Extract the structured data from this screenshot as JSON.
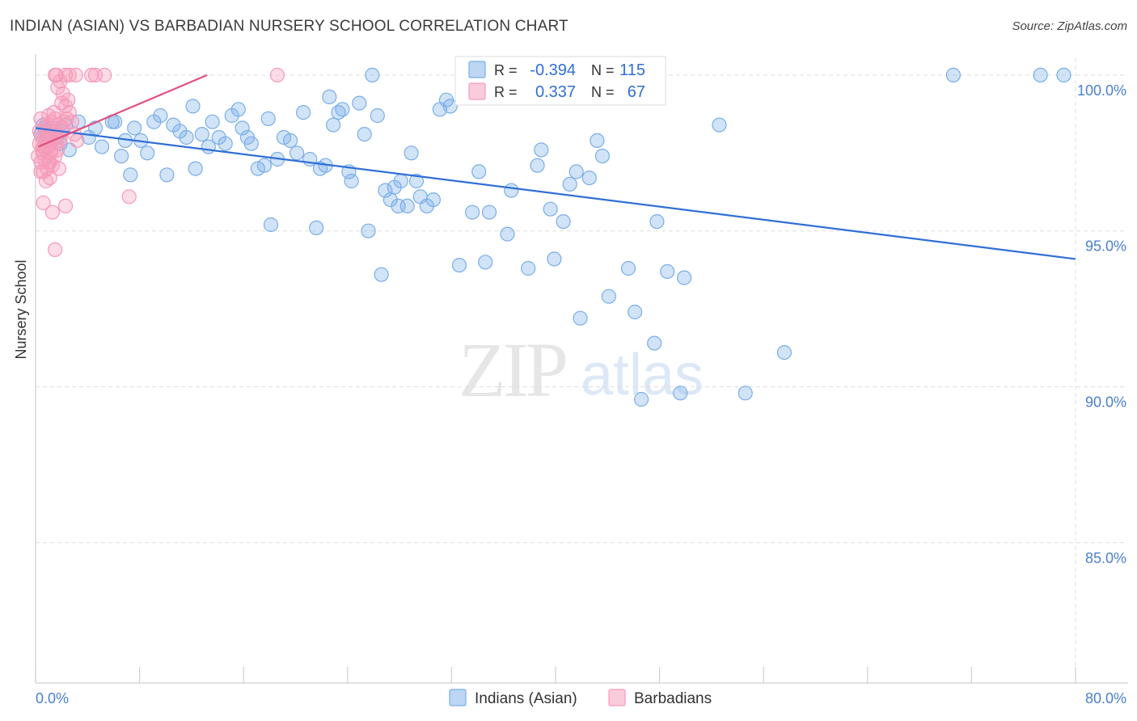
{
  "title": "INDIAN (ASIAN) VS BARBADIAN NURSERY SCHOOL CORRELATION CHART",
  "source": "Source: ZipAtlas.com",
  "watermark": {
    "zip": "ZIP",
    "atlas": "atlas"
  },
  "chart_data": {
    "type": "scatter",
    "title": "INDIAN (ASIAN) VS BARBADIAN NURSERY SCHOOL CORRELATION CHART",
    "xlabel": "",
    "ylabel": "Nursery School",
    "xlim": [
      0,
      80
    ],
    "ylim": [
      80.5,
      100.8
    ],
    "x_tick_labels": [
      {
        "value": 0,
        "label": "0.0%"
      },
      {
        "value": 80,
        "label": "80.0%"
      }
    ],
    "y_tick_labels": [
      {
        "value": 100,
        "label": "100.0%"
      },
      {
        "value": 95,
        "label": "95.0%"
      },
      {
        "value": 90,
        "label": "90.0%"
      },
      {
        "value": 85,
        "label": "85.0%"
      }
    ],
    "grid": true,
    "legend_position": "bottom-center",
    "stats_box": [
      {
        "r_label": "R =",
        "r_value": "-0.394",
        "n_label": "N =",
        "n_value": "115"
      },
      {
        "r_label": "R =",
        "r_value": "0.337",
        "n_label": "N =",
        "n_value": "67"
      }
    ],
    "series": [
      {
        "name": "Indians (Asian)",
        "color": "#7aaee8",
        "line_color": "#2f6fd6",
        "trend": {
          "x": [
            0,
            80
          ],
          "y": [
            98.3,
            94.1
          ]
        },
        "points": [
          [
            0.4,
            98.1
          ],
          [
            0.6,
            98.4
          ],
          [
            0.8,
            98.2
          ],
          [
            1.0,
            97.9
          ],
          [
            1.3,
            98.3
          ],
          [
            1.6,
            98.0
          ],
          [
            1.9,
            97.8
          ],
          [
            2.3,
            98.4
          ],
          [
            2.6,
            97.6
          ],
          [
            3.3,
            98.5
          ],
          [
            4.1,
            98.0
          ],
          [
            4.6,
            98.3
          ],
          [
            5.1,
            97.7
          ],
          [
            5.9,
            98.5
          ],
          [
            6.6,
            97.4
          ],
          [
            6.9,
            97.9
          ],
          [
            7.3,
            96.8
          ],
          [
            7.6,
            98.3
          ],
          [
            8.1,
            97.9
          ],
          [
            8.6,
            97.5
          ],
          [
            9.1,
            98.5
          ],
          [
            9.6,
            98.7
          ],
          [
            10.1,
            96.8
          ],
          [
            10.6,
            98.4
          ],
          [
            11.1,
            98.2
          ],
          [
            11.6,
            98.0
          ],
          [
            12.1,
            99.0
          ],
          [
            12.3,
            97.0
          ],
          [
            12.8,
            98.1
          ],
          [
            13.3,
            97.7
          ],
          [
            13.6,
            98.5
          ],
          [
            14.1,
            98.0
          ],
          [
            14.6,
            97.8
          ],
          [
            15.1,
            98.7
          ],
          [
            15.6,
            98.9
          ],
          [
            15.9,
            98.3
          ],
          [
            16.3,
            98.0
          ],
          [
            16.6,
            97.8
          ],
          [
            17.1,
            97.0
          ],
          [
            17.6,
            97.1
          ],
          [
            17.9,
            98.6
          ],
          [
            18.1,
            95.2
          ],
          [
            18.6,
            97.3
          ],
          [
            19.1,
            98.0
          ],
          [
            19.6,
            97.9
          ],
          [
            20.1,
            97.5
          ],
          [
            20.6,
            98.8
          ],
          [
            21.1,
            97.3
          ],
          [
            21.6,
            95.1
          ],
          [
            21.9,
            97.0
          ],
          [
            22.3,
            97.1
          ],
          [
            22.6,
            99.3
          ],
          [
            22.9,
            98.4
          ],
          [
            23.3,
            98.8
          ],
          [
            23.6,
            98.9
          ],
          [
            24.1,
            96.9
          ],
          [
            24.3,
            96.6
          ],
          [
            24.9,
            99.1
          ],
          [
            25.3,
            98.1
          ],
          [
            25.6,
            95.0
          ],
          [
            25.9,
            100.0
          ],
          [
            26.3,
            98.7
          ],
          [
            26.6,
            93.6
          ],
          [
            26.9,
            96.3
          ],
          [
            27.3,
            96.0
          ],
          [
            27.6,
            96.4
          ],
          [
            27.9,
            95.8
          ],
          [
            28.1,
            96.6
          ],
          [
            28.6,
            95.8
          ],
          [
            28.9,
            97.5
          ],
          [
            29.3,
            96.6
          ],
          [
            29.6,
            96.1
          ],
          [
            30.1,
            95.8
          ],
          [
            30.6,
            96.0
          ],
          [
            31.1,
            98.9
          ],
          [
            31.6,
            99.2
          ],
          [
            31.9,
            99.0
          ],
          [
            32.6,
            93.9
          ],
          [
            33.1,
            100.0
          ],
          [
            33.6,
            95.6
          ],
          [
            34.1,
            96.9
          ],
          [
            34.6,
            94.0
          ],
          [
            34.9,
            95.6
          ],
          [
            36.3,
            94.9
          ],
          [
            36.6,
            96.3
          ],
          [
            37.9,
            93.8
          ],
          [
            38.6,
            97.1
          ],
          [
            38.9,
            97.6
          ],
          [
            39.6,
            95.7
          ],
          [
            39.9,
            94.1
          ],
          [
            40.6,
            95.3
          ],
          [
            41.1,
            96.5
          ],
          [
            41.6,
            96.9
          ],
          [
            41.9,
            92.2
          ],
          [
            42.6,
            96.7
          ],
          [
            43.2,
            97.9
          ],
          [
            43.6,
            97.4
          ],
          [
            44.1,
            92.9
          ],
          [
            45.6,
            93.8
          ],
          [
            46.1,
            92.4
          ],
          [
            46.6,
            89.6
          ],
          [
            47.6,
            91.4
          ],
          [
            47.8,
            95.3
          ],
          [
            48.6,
            93.7
          ],
          [
            49.6,
            89.8
          ],
          [
            49.9,
            93.5
          ],
          [
            52.6,
            98.4
          ],
          [
            54.6,
            89.8
          ],
          [
            57.6,
            91.1
          ],
          [
            70.6,
            100.0
          ],
          [
            77.3,
            100.0
          ],
          [
            79.1,
            100.0
          ],
          [
            0.7,
            98.3
          ],
          [
            2.0,
            98.2
          ],
          [
            6.1,
            98.5
          ]
        ]
      },
      {
        "name": "Barbadians",
        "color": "#f59ab8",
        "line_color": "#e0507e",
        "trend": {
          "x": [
            0.2,
            13.2
          ],
          "y": [
            97.7,
            100.0
          ]
        },
        "points": [
          [
            0.2,
            97.4
          ],
          [
            0.3,
            97.8
          ],
          [
            0.3,
            98.2
          ],
          [
            0.4,
            97.2
          ],
          [
            0.4,
            98.6
          ],
          [
            0.5,
            97.6
          ],
          [
            0.5,
            98.0
          ],
          [
            0.6,
            96.9
          ],
          [
            0.6,
            97.5
          ],
          [
            0.7,
            98.1
          ],
          [
            0.7,
            97.3
          ],
          [
            0.8,
            97.9
          ],
          [
            0.8,
            98.4
          ],
          [
            0.9,
            97.0
          ],
          [
            0.9,
            97.7
          ],
          [
            1.0,
            98.3
          ],
          [
            1.0,
            97.2
          ],
          [
            1.1,
            98.0
          ],
          [
            1.1,
            96.7
          ],
          [
            1.2,
            97.6
          ],
          [
            1.2,
            98.5
          ],
          [
            1.3,
            97.9
          ],
          [
            1.3,
            97.1
          ],
          [
            1.4,
            98.2
          ],
          [
            1.4,
            98.8
          ],
          [
            1.5,
            97.4
          ],
          [
            1.5,
            98.6
          ],
          [
            1.6,
            97.8
          ],
          [
            1.6,
            98.1
          ],
          [
            1.7,
            99.6
          ],
          [
            1.7,
            97.6
          ],
          [
            1.8,
            98.4
          ],
          [
            1.9,
            99.8
          ],
          [
            1.9,
            97.9
          ],
          [
            2.0,
            99.1
          ],
          [
            2.0,
            98.3
          ],
          [
            2.1,
            99.4
          ],
          [
            2.2,
            98.5
          ],
          [
            2.3,
            99.0
          ],
          [
            2.4,
            98.6
          ],
          [
            2.5,
            99.2
          ],
          [
            2.6,
            98.8
          ],
          [
            2.8,
            98.5
          ],
          [
            3.0,
            98.1
          ],
          [
            3.2,
            97.9
          ],
          [
            1.5,
            100.0
          ],
          [
            1.6,
            100.0
          ],
          [
            2.3,
            100.0
          ],
          [
            2.6,
            100.0
          ],
          [
            3.1,
            100.0
          ],
          [
            4.3,
            100.0
          ],
          [
            4.6,
            100.0
          ],
          [
            5.3,
            100.0
          ],
          [
            0.6,
            95.9
          ],
          [
            1.3,
            95.6
          ],
          [
            2.3,
            95.8
          ],
          [
            1.5,
            94.4
          ],
          [
            7.2,
            96.1
          ],
          [
            18.6,
            100.0
          ],
          [
            0.8,
            96.6
          ],
          [
            1.1,
            97.2
          ],
          [
            0.4,
            96.9
          ],
          [
            1.9,
            98.0
          ],
          [
            0.6,
            97.7
          ],
          [
            1.0,
            98.7
          ],
          [
            1.2,
            97.5
          ],
          [
            1.8,
            97.0
          ]
        ]
      }
    ]
  }
}
